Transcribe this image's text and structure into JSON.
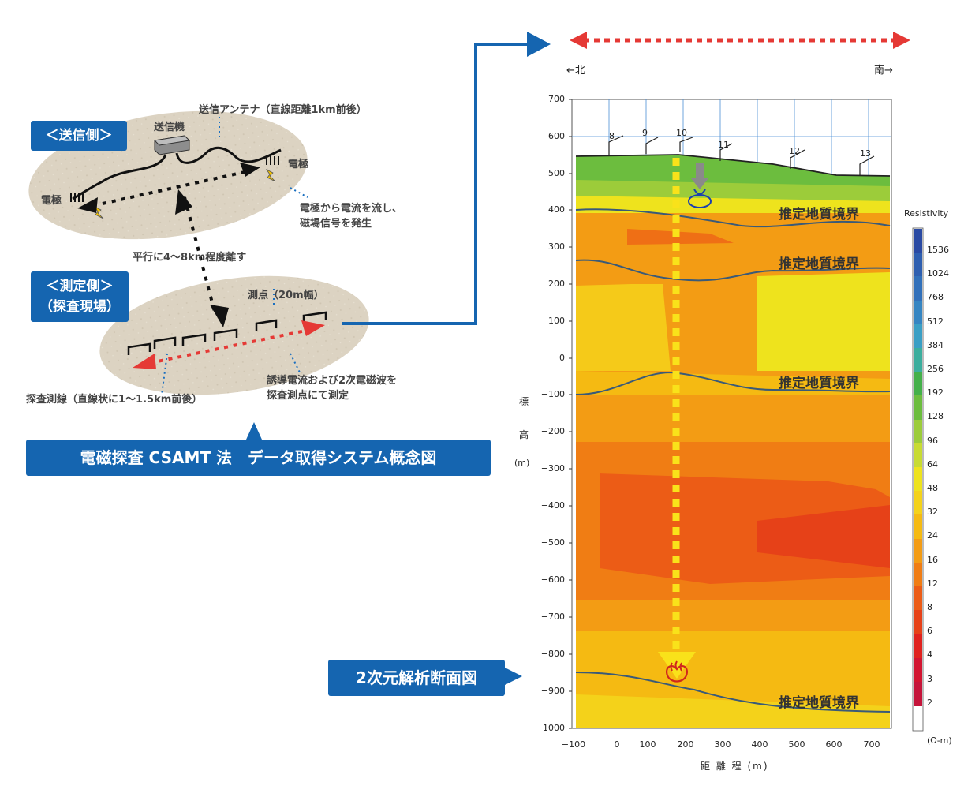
{
  "left": {
    "send_side": "＜送信側＞",
    "transmitter": "送信機",
    "antenna": "送信アンテナ（直線距離1km前後）",
    "electrode_r": "電極",
    "electrode_l": "電極",
    "current_note_1": "電極から電流を流し、",
    "current_note_2": "磁場信号を発生",
    "parallel": "平行に4～8km程度離す",
    "measure_side_1": "＜測定側＞",
    "measure_side_2": "（探査現場）",
    "station": "測点（20m幅）",
    "line": "探査測線（直線状に1～1.5km前後）",
    "induced_1": "誘導電流および2次電磁波を",
    "induced_2": "探査測点にて測定",
    "caption": "電磁探査 CSAMT 法　データ取得システム概念図",
    "section_label": "2次元解析断面図"
  },
  "section": {
    "north": "←北",
    "south": "南→",
    "y_axis_label": [
      "標",
      "高",
      "(m)"
    ],
    "x_axis_label": "距 離 程 (m)",
    "y_ticks": [
      "700",
      "600",
      "500",
      "400",
      "300",
      "200",
      "100",
      "0",
      "−100",
      "−200",
      "−300",
      "−400",
      "−500",
      "−600",
      "−700",
      "−800",
      "−900",
      "−1000"
    ],
    "x_ticks": [
      "−100",
      "0",
      "100",
      "200",
      "300",
      "400",
      "500",
      "600",
      "700"
    ],
    "stations": [
      "8",
      "9",
      "10",
      "11",
      "12",
      "13"
    ],
    "boundaries": [
      "推定地質境界",
      "推定地質境界",
      "推定地質境界",
      "推定地質境界"
    ]
  },
  "legend": {
    "title": "Resistivity",
    "unit": "(Ω-m)",
    "values": [
      "1536",
      "1024",
      "768",
      "512",
      "384",
      "256",
      "192",
      "128",
      "96",
      "64",
      "48",
      "32",
      "24",
      "16",
      "12",
      "8",
      "6",
      "4",
      "3",
      "2"
    ],
    "colors": [
      "#2a4aa3",
      "#2e5fb0",
      "#3170ba",
      "#3585c2",
      "#3a9fc5",
      "#3cae9e",
      "#44b04a",
      "#6cbd3e",
      "#9ccc3a",
      "#c8db33",
      "#eee31d",
      "#f4d21a",
      "#f5ba12",
      "#f39c14",
      "#f07d14",
      "#ec5c16",
      "#e64118",
      "#e0221e",
      "#d21430",
      "#c5143a"
    ]
  }
}
